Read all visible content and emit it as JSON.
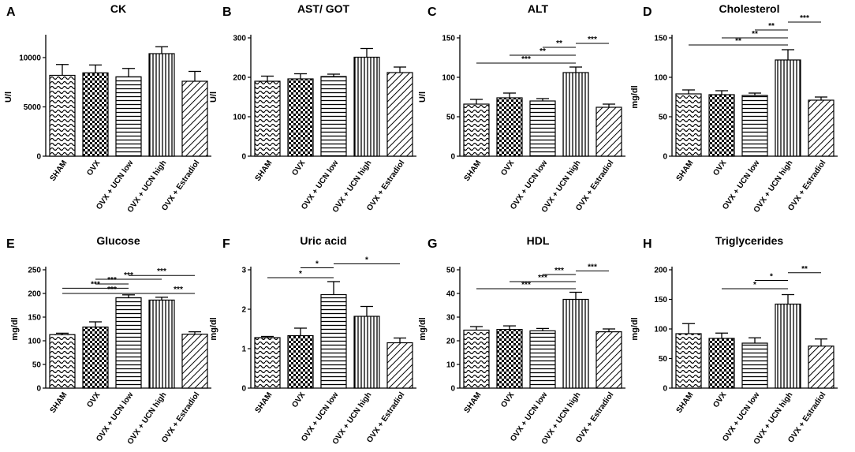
{
  "categories": [
    "SHAM",
    "OVX",
    "OVX + UCN low",
    "OVX + UCN high",
    "OVX + Estradiol"
  ],
  "chart_data": [
    {
      "type": "bar",
      "letter": "A",
      "title": "CK",
      "ylabel": "U/l",
      "ylim": [
        0,
        12000
      ],
      "ticks": [
        0,
        5000,
        10000
      ],
      "categories": [
        "SHAM",
        "OVX",
        "OVX + UCN low",
        "OVX + UCN high",
        "OVX + Estradiol"
      ],
      "values": [
        8200,
        8450,
        8050,
        10400,
        7600
      ],
      "errors": [
        1100,
        800,
        850,
        700,
        1000
      ],
      "significance": []
    },
    {
      "type": "bar",
      "letter": "B",
      "title": "AST/ GOT",
      "ylabel": "U/l",
      "ylim": [
        0,
        300
      ],
      "ticks": [
        0,
        100,
        200,
        300
      ],
      "categories": [
        "SHAM",
        "OVX",
        "OVX + UCN low",
        "OVX + UCN high",
        "OVX + Estradiol"
      ],
      "values": [
        190,
        196,
        202,
        251,
        212
      ],
      "errors": [
        13,
        13,
        6,
        22,
        14
      ],
      "significance": []
    },
    {
      "type": "bar",
      "letter": "C",
      "title": "ALT",
      "ylabel": "U/l",
      "ylim": [
        0,
        150
      ],
      "ticks": [
        0,
        50,
        100,
        150
      ],
      "categories": [
        "SHAM",
        "OVX",
        "OVX + UCN low",
        "OVX + UCN high",
        "OVX + Estradiol"
      ],
      "values": [
        66,
        74,
        70,
        106,
        62
      ],
      "errors": [
        6,
        6,
        3,
        7,
        4
      ],
      "significance": [
        {
          "from": 0,
          "to": 3,
          "level": 118,
          "label": "***"
        },
        {
          "from": 1,
          "to": 3,
          "level": 128,
          "label": "**"
        },
        {
          "from": 2,
          "to": 3,
          "level": 138,
          "label": "**"
        },
        {
          "from": 3,
          "to": 4,
          "level": 143,
          "label": "***"
        }
      ]
    },
    {
      "type": "bar",
      "letter": "D",
      "title": "Cholesterol",
      "ylabel": "mg/dl",
      "ylim": [
        0,
        150
      ],
      "ticks": [
        0,
        50,
        100,
        150
      ],
      "categories": [
        "SHAM",
        "OVX",
        "OVX + UCN low",
        "OVX + UCN high",
        "OVX + Estradiol"
      ],
      "values": [
        79,
        78,
        77,
        122,
        71
      ],
      "errors": [
        5,
        5,
        3,
        13,
        4
      ],
      "significance": [
        {
          "from": 0,
          "to": 3,
          "level": 141,
          "label": "**"
        },
        {
          "from": 1,
          "to": 3,
          "level": 150,
          "label": "**"
        },
        {
          "from": 2,
          "to": 3,
          "level": 160,
          "label": "**"
        },
        {
          "from": 3,
          "to": 4,
          "level": 170,
          "label": "***"
        }
      ]
    },
    {
      "type": "bar",
      "letter": "E",
      "title": "Glucose",
      "ylabel": "mg/dl",
      "ylim": [
        0,
        250
      ],
      "ticks": [
        0,
        50,
        100,
        150,
        200,
        250
      ],
      "categories": [
        "SHAM",
        "OVX",
        "OVX + UCN low",
        "OVX + UCN high",
        "OVX + Estradiol"
      ],
      "values": [
        113,
        129,
        191,
        186,
        114
      ],
      "errors": [
        3,
        11,
        6,
        6,
        5
      ],
      "significance": [
        {
          "from": 0,
          "to": 3,
          "level": 200,
          "label": "***"
        },
        {
          "from": 0,
          "to": 2,
          "level": 211,
          "label": "***"
        },
        {
          "from": 1,
          "to": 2,
          "level": 220,
          "label": "***"
        },
        {
          "from": 1,
          "to": 3,
          "level": 230,
          "label": "***"
        },
        {
          "from": 3,
          "to": 4,
          "level": 200,
          "label": "***"
        },
        {
          "from": 2,
          "to": 4,
          "level": 238,
          "label": "***"
        }
      ]
    },
    {
      "type": "bar",
      "letter": "F",
      "title": "Uric acid",
      "ylabel": "mg/dl",
      "ylim": [
        0,
        3
      ],
      "ticks": [
        0,
        1,
        2,
        3
      ],
      "categories": [
        "SHAM",
        "OVX",
        "OVX + UCN low",
        "OVX + UCN high",
        "OVX + Estradiol"
      ],
      "values": [
        1.28,
        1.33,
        2.37,
        1.82,
        1.15
      ],
      "errors": [
        0.03,
        0.19,
        0.33,
        0.25,
        0.12
      ],
      "significance": [
        {
          "from": 0,
          "to": 2,
          "level": 2.8,
          "label": "*"
        },
        {
          "from": 1,
          "to": 2,
          "level": 3.05,
          "label": "*"
        },
        {
          "from": 2,
          "to": 4,
          "level": 3.15,
          "label": "*"
        }
      ]
    },
    {
      "type": "bar",
      "letter": "G",
      "title": "HDL",
      "ylabel": "mg/dl",
      "ylim": [
        0,
        50
      ],
      "ticks": [
        0,
        10,
        20,
        30,
        40,
        50
      ],
      "categories": [
        "SHAM",
        "OVX",
        "OVX + UCN low",
        "OVX + UCN high",
        "OVX + Estradiol"
      ],
      "values": [
        24.5,
        24.8,
        24.2,
        37.5,
        23.8
      ],
      "errors": [
        1.5,
        1.5,
        1.0,
        3.0,
        1.2
      ],
      "significance": [
        {
          "from": 0,
          "to": 3,
          "level": 42,
          "label": "***"
        },
        {
          "from": 1,
          "to": 3,
          "level": 45,
          "label": "***"
        },
        {
          "from": 2,
          "to": 3,
          "level": 48,
          "label": "***"
        },
        {
          "from": 3,
          "to": 4,
          "level": 49.5,
          "label": "***"
        }
      ]
    },
    {
      "type": "bar",
      "letter": "H",
      "title": "Triglycerides",
      "ylabel": "mg/dl",
      "ylim": [
        0,
        200
      ],
      "ticks": [
        0,
        50,
        100,
        150,
        200
      ],
      "categories": [
        "SHAM",
        "OVX",
        "OVX + UCN low",
        "OVX + UCN high",
        "OVX + Estradiol"
      ],
      "values": [
        92,
        84,
        76,
        142,
        71
      ],
      "errors": [
        17,
        9,
        9,
        16,
        12
      ],
      "significance": [
        {
          "from": 1,
          "to": 3,
          "level": 168,
          "label": "*"
        },
        {
          "from": 2,
          "to": 3,
          "level": 182,
          "label": "*"
        },
        {
          "from": 3,
          "to": 4,
          "level": 195,
          "label": "**"
        }
      ]
    }
  ]
}
